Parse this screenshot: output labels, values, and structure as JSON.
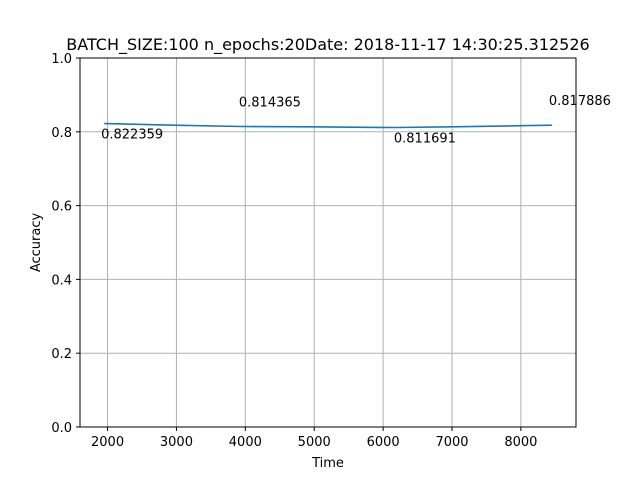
{
  "chart_data": {
    "type": "line",
    "title": "BATCH_SIZE:100 n_epochs:20Date: 2018-11-17 14:30:25.312526",
    "xlabel": "Time",
    "ylabel": "Accuracy",
    "xlim": [
      1600,
      8800
    ],
    "ylim": [
      0.0,
      1.0
    ],
    "xticks": [
      2000,
      3000,
      4000,
      5000,
      6000,
      7000,
      8000
    ],
    "xtick_labels": [
      "2000",
      "3000",
      "4000",
      "5000",
      "6000",
      "7000",
      "8000"
    ],
    "yticks": [
      0.0,
      0.2,
      0.4,
      0.6,
      0.8,
      1.0
    ],
    "ytick_labels": [
      "0.0",
      "0.2",
      "0.4",
      "0.6",
      "0.8",
      "1.0"
    ],
    "grid": true,
    "color": "#1f77b4",
    "series": [
      {
        "x": [
          1950,
          2950,
          3950,
          4950,
          5950,
          6200,
          7000,
          8000,
          8450
        ],
        "y": [
          0.822359,
          0.818,
          0.814365,
          0.8135,
          0.8118,
          0.811691,
          0.8135,
          0.8165,
          0.817886
        ]
      }
    ],
    "annotations": [
      {
        "x": 1950,
        "y": 0.822359,
        "text": "0.822359",
        "place": "below"
      },
      {
        "x": 3950,
        "y": 0.814365,
        "text": "0.814365",
        "place": "above"
      },
      {
        "x": 6200,
        "y": 0.811691,
        "text": "0.811691",
        "place": "below"
      },
      {
        "x": 8450,
        "y": 0.817886,
        "text": "0.817886",
        "place": "above"
      }
    ]
  }
}
